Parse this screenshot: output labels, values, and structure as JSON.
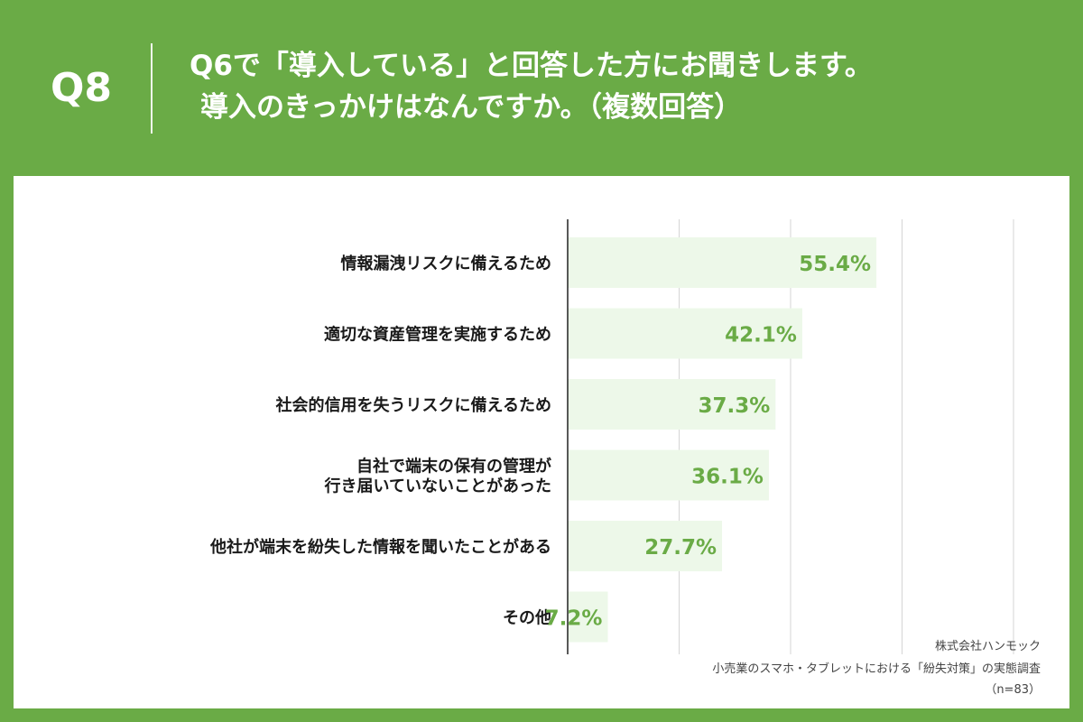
{
  "header": {
    "qnum": "Q8",
    "title_line1": "Q6で「導入している」と回答した方にお聞きします。",
    "title_line2": "導入のきっかけはなんですか。（複数回答）"
  },
  "colors": {
    "background": "#6aab46",
    "bar": "#edf8e9",
    "value_text": "#6aab46",
    "grid": "#d5d5d5",
    "axis": "#222222"
  },
  "chart_data": {
    "type": "bar",
    "orientation": "horizontal",
    "unit": "%",
    "xlim": [
      0,
      80
    ],
    "grid": true,
    "categories": [
      [
        "情報漏洩リスクに備えるため"
      ],
      [
        "適切な資産管理を実施するため"
      ],
      [
        "社会的信用を失うリスクに備えるため"
      ],
      [
        "自社で端末の保有の管理が",
        "行き届いていないことがあった"
      ],
      [
        "他社が端末を紛失した情報を聞いたことがある"
      ],
      [
        "その他"
      ]
    ],
    "values": [
      55.4,
      42.1,
      37.3,
      36.1,
      27.7,
      7.2
    ],
    "value_labels": [
      "55.4%",
      "42.1%",
      "37.3%",
      "36.1%",
      "27.7%",
      "7.2%"
    ]
  },
  "source": {
    "company": "株式会社ハンモック",
    "survey": "小売業のスマホ・タブレットにおける「紛失対策」の実態調査",
    "sample": "（n=83）"
  }
}
